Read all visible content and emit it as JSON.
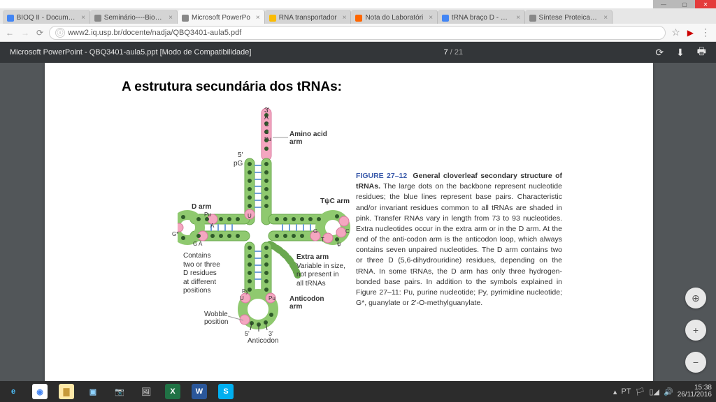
{
  "window": {
    "tabs": [
      {
        "label": "BIOQ II - Document",
        "favicon": "#4285f4"
      },
      {
        "label": "Seminário----Bioqui",
        "favicon": "#888"
      },
      {
        "label": "Microsoft PowerPo",
        "favicon": "#888",
        "active": true
      },
      {
        "label": "RNA transportador",
        "favicon": "#fbbc05"
      },
      {
        "label": "Nota do Laboratóri",
        "favicon": "#ff6600"
      },
      {
        "label": "tRNA braço D - Pes",
        "favicon": "#4285f4"
      },
      {
        "label": "Síntese Proteica | M",
        "favicon": "#888"
      }
    ],
    "url_info_icon": "ⓘ",
    "url": "www2.iq.usp.br/docente/nadja/QBQ3401-aula5.pdf"
  },
  "pdf": {
    "docTitle": "Microsoft PowerPoint - QBQ3401-aula5.ppt [Modo de Compatibilidade]",
    "page": "7",
    "total": "21"
  },
  "slide": {
    "title": "A estrutura secundária dos tRNAs:"
  },
  "labels": {
    "three_prime": "3'",
    "acca": "A\nC\nC\nPu",
    "amino_acid_arm_l1": "Amino acid",
    "amino_acid_arm_l2": "arm",
    "five_prime": "5'",
    "pG": "pG",
    "tpsi": "TψC arm",
    "d_arm": "D arm",
    "pu": "Pu",
    "a": "A",
    "gstar": "G*",
    "gA": "G   A",
    "contains_l1": "Contains",
    "contains_l2": "two or three",
    "contains_l3": "D residues",
    "contains_l4": "at different",
    "contains_l5": "positions",
    "extra_l1": "Extra arm",
    "extra_l2": "Variable in size,",
    "extra_l3": "not present in",
    "extra_l4": "all tRNAs",
    "py": "Py",
    "u": "U",
    "u2": "U",
    "pu2": "Pu",
    "anticodon_l1": "Anticodon",
    "anticodon_l2": "arm",
    "wobble_l1": "Wobble",
    "wobble_l2": "position",
    "anticodon_five": "5'",
    "anticodon_three": "3'",
    "anticodon_label": "Anticodon",
    "t_label": "T",
    "psi_label": "ψ",
    "c_label": "C",
    "g_label": "G"
  },
  "caption": {
    "figlabel": "FIGURE 27–12",
    "figtitle": "General cloverleaf secondary structure of tRNAs.",
    "body": "The large dots on the backbone represent nucleotide residues; the blue lines represent base pairs. Characteristic and/or invariant residues common to all tRNAs are shaded in pink. Transfer RNAs vary in length from 73 to 93 nucleotides. Extra nucleotides occur in the extra arm or in the D arm. At the end of the anti-codon arm is the anticodon loop, which always contains seven unpaired nucleotides. The D arm contains two or three D (5,6-dihydrouridine) residues, depending on the tRNA. In some tRNAs, the D arm has only three hydrogen-bonded base pairs. In addition to the symbols explained in Figure 27–11: Pu, purine nucleotide; Py, pyrimidine nucleotide; G*, guanylate or 2'-O-methylguanylate."
  },
  "taskbar": {
    "items": [
      {
        "bg": "transparent",
        "glyph": "e",
        "color": "#4cc2ff"
      },
      {
        "bg": "#fff",
        "glyph": "◉",
        "color": "#4285f4"
      },
      {
        "bg": "#ffe9a8",
        "glyph": "▇",
        "color": "#c79a3a"
      },
      {
        "bg": "transparent",
        "glyph": "▣",
        "color": "#8fd3ff"
      },
      {
        "bg": "transparent",
        "glyph": "📷",
        "color": "#aaa"
      },
      {
        "bg": "transparent",
        "glyph": "🖼",
        "color": "#aaa"
      },
      {
        "bg": "#207245",
        "glyph": "X",
        "color": "#fff"
      },
      {
        "bg": "#2b579a",
        "glyph": "W",
        "color": "#fff"
      },
      {
        "bg": "#00aff0",
        "glyph": "S",
        "color": "#fff"
      }
    ],
    "time": "15:38",
    "date": "26/11/2016"
  },
  "colors": {
    "backbone_green": "#8fc96f",
    "backbone_green_stroke": "#6aa84f",
    "dot": "#2f5b2a",
    "pink": "#f4a6c0",
    "pink_stroke": "#d97aa0",
    "bond_blue": "#6fa0d8",
    "leader": "#999"
  }
}
